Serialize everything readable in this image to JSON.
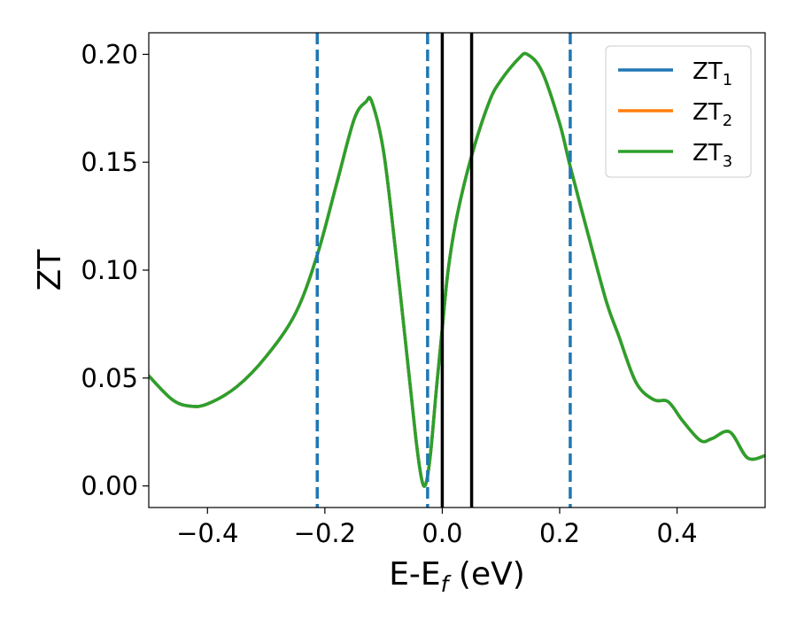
{
  "chart_data": {
    "type": "line",
    "xlabel": {
      "main": "E-E",
      "sub": "f",
      "unit": " (eV)"
    },
    "ylabel": "ZT",
    "xlim": [
      -0.5,
      0.55
    ],
    "ylim": [
      -0.01,
      0.21
    ],
    "x_ticks": [
      -0.4,
      -0.2,
      0.0,
      0.2,
      0.4
    ],
    "x_tick_labels": [
      "−0.4",
      "−0.2",
      "0.0",
      "0.2",
      "0.4"
    ],
    "y_ticks": [
      0.0,
      0.05,
      0.1,
      0.15,
      0.2
    ],
    "y_tick_labels": [
      "0.00",
      "0.05",
      "0.10",
      "0.15",
      "0.20"
    ],
    "grid": false,
    "legend_position": "top-right",
    "dashed_vlines": {
      "x": [
        -0.213,
        -0.025,
        0.218
      ],
      "color": "#1f77b4"
    },
    "solid_vlines": {
      "x": [
        0.0,
        0.05
      ],
      "color": "#000000"
    },
    "series": [
      {
        "name": "ZT",
        "name_sub": "1",
        "color": "#1f77b4",
        "x": [
          -0.5,
          -0.46,
          -0.43,
          -0.4,
          -0.35,
          -0.3,
          -0.25,
          -0.213,
          -0.18,
          -0.15,
          -0.13,
          -0.12,
          -0.1,
          -0.08,
          -0.06,
          -0.045,
          -0.035,
          -0.028,
          -0.02,
          -0.01,
          0.0,
          0.01,
          0.025,
          0.05,
          0.08,
          0.1,
          0.13,
          0.145,
          0.17,
          0.2,
          0.218,
          0.25,
          0.28,
          0.3,
          0.33,
          0.36,
          0.385,
          0.41,
          0.44,
          0.46,
          0.49,
          0.52,
          0.55
        ],
        "y": [
          0.051,
          0.04,
          0.037,
          0.038,
          0.046,
          0.06,
          0.08,
          0.107,
          0.14,
          0.17,
          0.178,
          0.178,
          0.155,
          0.11,
          0.06,
          0.022,
          0.003,
          0.001,
          0.015,
          0.045,
          0.073,
          0.1,
          0.125,
          0.153,
          0.178,
          0.188,
          0.198,
          0.2,
          0.192,
          0.168,
          0.148,
          0.115,
          0.085,
          0.07,
          0.048,
          0.04,
          0.039,
          0.03,
          0.021,
          0.022,
          0.025,
          0.013,
          0.014
        ]
      },
      {
        "name": "ZT",
        "name_sub": "2",
        "color": "#ff7f0e",
        "x": [
          -0.5,
          -0.46,
          -0.43,
          -0.4,
          -0.35,
          -0.3,
          -0.25,
          -0.213,
          -0.18,
          -0.15,
          -0.13,
          -0.12,
          -0.1,
          -0.08,
          -0.06,
          -0.045,
          -0.035,
          -0.028,
          -0.02,
          -0.01,
          0.0,
          0.01,
          0.025,
          0.05,
          0.08,
          0.1,
          0.13,
          0.145,
          0.17,
          0.2,
          0.218,
          0.25,
          0.28,
          0.3,
          0.33,
          0.36,
          0.385,
          0.41,
          0.44,
          0.46,
          0.49,
          0.52,
          0.55
        ],
        "y": [
          0.051,
          0.04,
          0.037,
          0.038,
          0.046,
          0.06,
          0.08,
          0.107,
          0.14,
          0.17,
          0.178,
          0.178,
          0.155,
          0.11,
          0.06,
          0.022,
          0.003,
          0.001,
          0.015,
          0.045,
          0.073,
          0.1,
          0.125,
          0.153,
          0.178,
          0.188,
          0.198,
          0.2,
          0.192,
          0.168,
          0.148,
          0.115,
          0.085,
          0.07,
          0.048,
          0.04,
          0.039,
          0.03,
          0.021,
          0.022,
          0.025,
          0.013,
          0.014
        ]
      },
      {
        "name": "ZT",
        "name_sub": "3",
        "color": "#2ca02c",
        "x": [
          -0.5,
          -0.46,
          -0.43,
          -0.4,
          -0.35,
          -0.3,
          -0.25,
          -0.213,
          -0.18,
          -0.15,
          -0.13,
          -0.12,
          -0.1,
          -0.08,
          -0.06,
          -0.045,
          -0.035,
          -0.028,
          -0.02,
          -0.01,
          0.0,
          0.01,
          0.025,
          0.05,
          0.08,
          0.1,
          0.13,
          0.145,
          0.17,
          0.2,
          0.218,
          0.25,
          0.28,
          0.3,
          0.33,
          0.36,
          0.385,
          0.41,
          0.44,
          0.46,
          0.49,
          0.52,
          0.55
        ],
        "y": [
          0.051,
          0.04,
          0.037,
          0.038,
          0.046,
          0.06,
          0.08,
          0.107,
          0.14,
          0.17,
          0.178,
          0.178,
          0.155,
          0.11,
          0.06,
          0.022,
          0.003,
          0.001,
          0.015,
          0.045,
          0.073,
          0.1,
          0.125,
          0.153,
          0.178,
          0.188,
          0.198,
          0.2,
          0.192,
          0.168,
          0.148,
          0.115,
          0.085,
          0.07,
          0.048,
          0.04,
          0.039,
          0.03,
          0.021,
          0.022,
          0.025,
          0.013,
          0.014
        ]
      }
    ]
  }
}
